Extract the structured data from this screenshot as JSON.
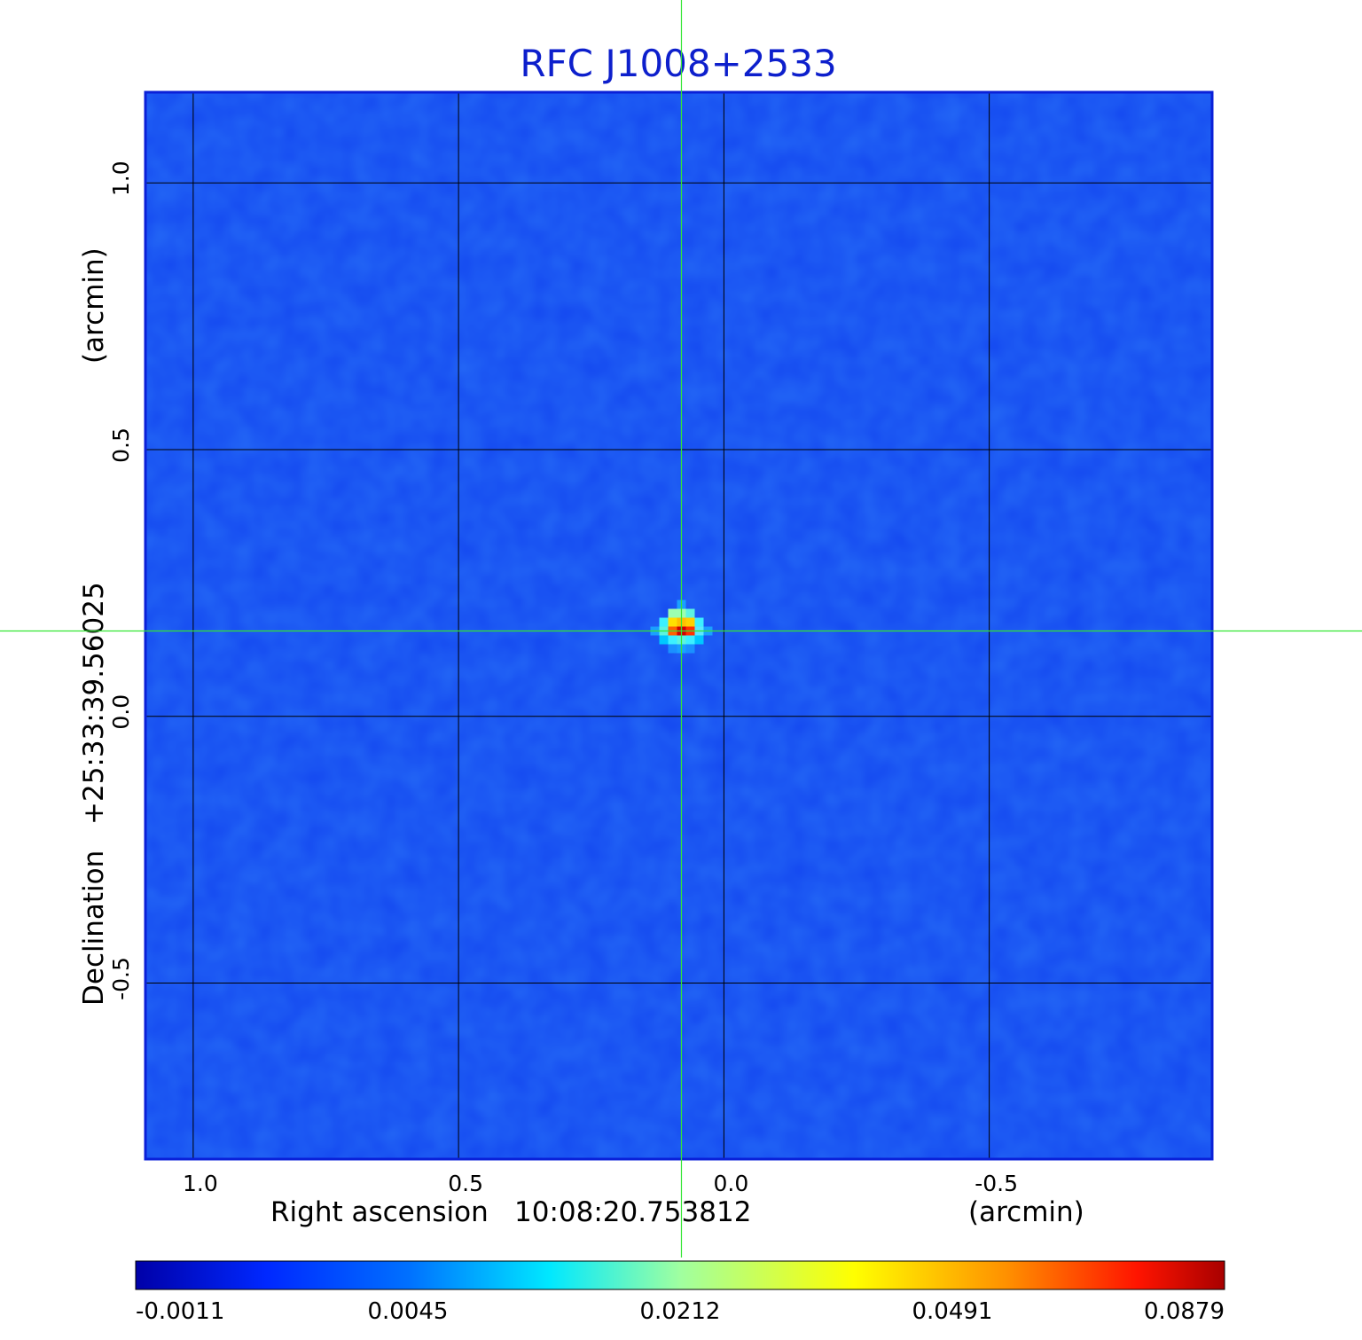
{
  "chart_data": {
    "type": "heatmap",
    "title": "RFC J1008+2533",
    "xlabel_prefix": "Right ascension",
    "xlabel_value": "10:08:20.753812",
    "xlabel_unit": "(arcmin)",
    "ylabel_prefix": "Declination",
    "ylabel_value": "+25:33:39.56025",
    "ylabel_unit": "(arcmin)",
    "x_range": [
      1.09,
      -0.92
    ],
    "y_range": [
      -0.83,
      1.17
    ],
    "x_ticks": [
      {
        "value": 1.0,
        "label": "1.0"
      },
      {
        "value": 0.5,
        "label": "0.5"
      },
      {
        "value": 0.0,
        "label": "0.0"
      },
      {
        "value": -0.5,
        "label": "-0.5"
      }
    ],
    "y_ticks": [
      {
        "value": 1.0,
        "label": "1.0"
      },
      {
        "value": 0.5,
        "label": "0.5"
      },
      {
        "value": 0.0,
        "label": "0.0"
      },
      {
        "value": -0.5,
        "label": "-0.5"
      }
    ],
    "grid": true,
    "source": {
      "x": 0.08,
      "y": 0.16,
      "peak": 0.0879
    },
    "background_level": 0.002,
    "colorbar": {
      "orientation": "horizontal",
      "placement": "bottom",
      "ticks": [
        "-0.0011",
        "0.0045",
        "0.0212",
        "0.0491",
        "0.0879"
      ],
      "colors": [
        "#0000a8",
        "#0028ff",
        "#00e8ff",
        "#ffff00",
        "#ff1400",
        "#a80000"
      ]
    },
    "colors": {
      "title": "#0d1fcc",
      "crosshair": "#33e633",
      "background_map": "#1448f0",
      "grid": "#000000"
    }
  }
}
